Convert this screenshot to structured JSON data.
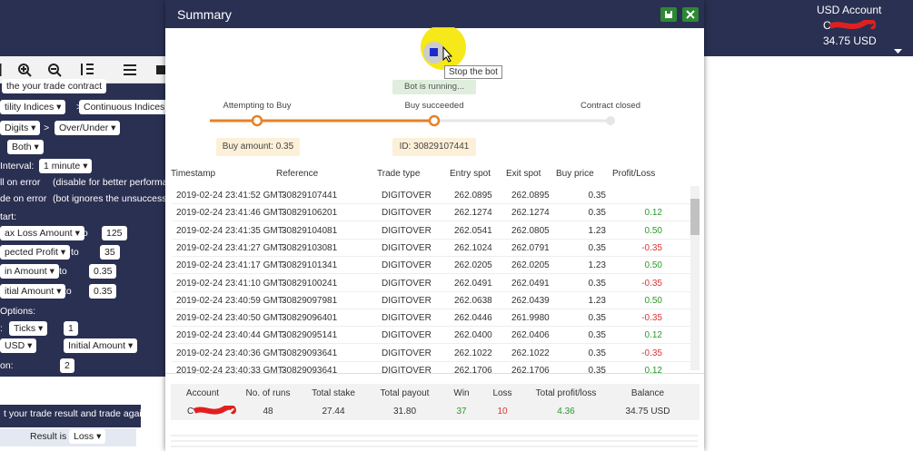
{
  "account": {
    "title": "USD Account",
    "name": "C",
    "balance": "34.75 USD"
  },
  "sidebar": {
    "items": [
      "the your trade contract",
      "tility Indices ▾",
      ">",
      "Continuous Indices ▾",
      "Digits ▾",
      ">",
      "Over/Under ▾",
      "Both ▾",
      "Interval:",
      "1 minute ▾",
      "ll on error",
      "(disable for better performance",
      "de on error",
      "(bot ignores the unsuccessfu",
      "tart:",
      "ax Loss Amount ▾",
      "to",
      "125",
      "pected Profit ▾",
      "to",
      "35",
      "in Amount ▾",
      "to",
      "0.35",
      "itial Amount ▾",
      "to",
      "0.35",
      "Options:",
      ":",
      "Ticks ▾",
      "1",
      "USD ▾",
      "Initial Amount ▾",
      "on:",
      "2",
      "t your trade result and trade again",
      "Result is",
      "Loss ▾"
    ]
  },
  "modal": {
    "title": "Summary",
    "tooltip": "Stop the bot",
    "status": "Bot is running...",
    "steps": [
      "Attempting to Buy",
      "Buy succeeded",
      "Contract closed"
    ],
    "step_boxes": [
      "Buy amount: 0.35",
      "ID: 30829107441"
    ],
    "table": {
      "headers": [
        "Timestamp",
        "Reference",
        "Trade type",
        "Entry spot",
        "Exit spot",
        "Buy price",
        "Profit/Loss"
      ],
      "rows": [
        [
          "2019-02-24 23:41:52 GMT-",
          "30829107441",
          "DIGITOVER",
          "262.0895",
          "262.0895",
          "0.35",
          null
        ],
        [
          "2019-02-24 23:41:46 GMT-",
          "30829106201",
          "DIGITOVER",
          "262.1274",
          "262.1274",
          "0.35",
          "0.12"
        ],
        [
          "2019-02-24 23:41:35 GMT-",
          "30829104081",
          "DIGITOVER",
          "262.0541",
          "262.0805",
          "1.23",
          "0.50"
        ],
        [
          "2019-02-24 23:41:27 GMT-",
          "30829103081",
          "DIGITOVER",
          "262.1024",
          "262.0791",
          "0.35",
          "-0.35"
        ],
        [
          "2019-02-24 23:41:17 GMT-",
          "30829101341",
          "DIGITOVER",
          "262.0205",
          "262.0205",
          "1.23",
          "0.50"
        ],
        [
          "2019-02-24 23:41:10 GMT-",
          "30829100241",
          "DIGITOVER",
          "262.0491",
          "262.0491",
          "0.35",
          "-0.35"
        ],
        [
          "2019-02-24 23:40:59 GMT-",
          "30829097981",
          "DIGITOVER",
          "262.0638",
          "262.0439",
          "1.23",
          "0.50"
        ],
        [
          "2019-02-24 23:40:50 GMT-",
          "30829096401",
          "DIGITOVER",
          "262.0446",
          "261.9980",
          "0.35",
          "-0.35"
        ],
        [
          "2019-02-24 23:40:44 GMT-",
          "30829095141",
          "DIGITOVER",
          "262.0400",
          "262.0406",
          "0.35",
          "0.12"
        ],
        [
          "2019-02-24 23:40:36 GMT-",
          "30829093641",
          "DIGITOVER",
          "262.1022",
          "262.1022",
          "0.35",
          "-0.35"
        ],
        [
          "2019-02-24 23:40:33 GMT-",
          "30829093641",
          "DIGITOVER",
          "262.1706",
          "262.1706",
          "0.35",
          "0.12"
        ]
      ]
    },
    "summary": {
      "headers": [
        "Account",
        "No. of runs",
        "Total stake",
        "Total payout",
        "Win",
        "Loss",
        "Total profit/loss",
        "Balance"
      ],
      "values": [
        "C",
        "48",
        "27.44",
        "31.80",
        "37",
        "10",
        "4.36",
        "34.75 USD"
      ]
    }
  }
}
